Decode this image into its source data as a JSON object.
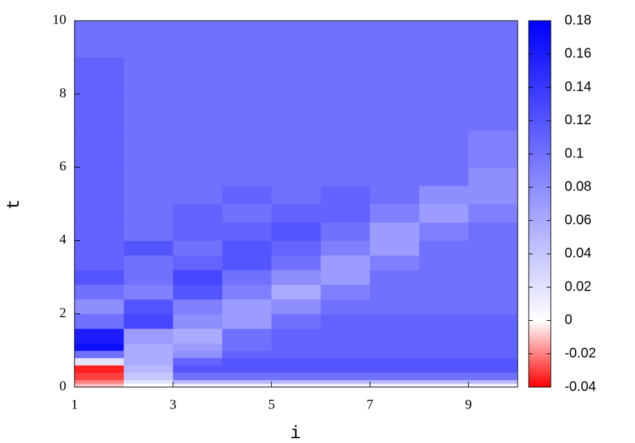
{
  "chart_data": {
    "type": "heatmap",
    "x_label": "i",
    "y_label": "t",
    "x": [
      1,
      2,
      3,
      4,
      5,
      6,
      7,
      8,
      9,
      10
    ],
    "y": [
      0,
      0.1,
      0.2,
      0.4,
      0.6,
      0.8,
      1.0,
      1.2,
      1.6,
      2.0,
      2.4,
      2.8,
      3.2,
      3.6,
      4.0,
      4.5,
      5,
      5.5,
      6,
      7,
      8,
      9,
      10
    ],
    "values": [
      [
        -0.01,
        0.0,
        0.01,
        0.01,
        0.01,
        0.01,
        0.01,
        0.01,
        0.01
      ],
      [
        -0.02,
        0.02,
        0.05,
        0.05,
        0.05,
        0.05,
        0.05,
        0.05,
        0.05
      ],
      [
        -0.03,
        0.04,
        0.1,
        0.1,
        0.1,
        0.1,
        0.1,
        0.1,
        0.1
      ],
      [
        -0.035,
        0.05,
        0.12,
        0.12,
        0.12,
        0.12,
        0.12,
        0.12,
        0.12
      ],
      [
        0.02,
        0.06,
        0.11,
        0.12,
        0.12,
        0.12,
        0.12,
        0.12,
        0.12
      ],
      [
        0.1,
        0.06,
        0.08,
        0.11,
        0.11,
        0.11,
        0.11,
        0.11,
        0.11
      ],
      [
        0.17,
        0.06,
        0.07,
        0.1,
        0.11,
        0.11,
        0.11,
        0.11,
        0.11
      ],
      [
        0.16,
        0.07,
        0.06,
        0.1,
        0.11,
        0.11,
        0.11,
        0.11,
        0.11
      ],
      [
        0.1,
        0.13,
        0.08,
        0.07,
        0.1,
        0.11,
        0.11,
        0.11,
        0.11
      ],
      [
        0.08,
        0.12,
        0.09,
        0.07,
        0.08,
        0.1,
        0.1,
        0.1,
        0.1
      ],
      [
        0.1,
        0.09,
        0.12,
        0.09,
        0.06,
        0.09,
        0.1,
        0.1,
        0.1
      ],
      [
        0.12,
        0.1,
        0.13,
        0.1,
        0.08,
        0.07,
        0.1,
        0.1,
        0.1
      ],
      [
        0.11,
        0.1,
        0.11,
        0.12,
        0.1,
        0.07,
        0.09,
        0.1,
        0.1
      ],
      [
        0.11,
        0.12,
        0.1,
        0.12,
        0.11,
        0.09,
        0.07,
        0.1,
        0.1
      ],
      [
        0.11,
        0.1,
        0.11,
        0.11,
        0.12,
        0.1,
        0.07,
        0.09,
        0.1
      ],
      [
        0.11,
        0.1,
        0.11,
        0.1,
        0.11,
        0.11,
        0.09,
        0.07,
        0.09
      ],
      [
        0.11,
        0.1,
        0.1,
        0.11,
        0.1,
        0.11,
        0.1,
        0.08,
        0.08
      ],
      [
        0.11,
        0.1,
        0.1,
        0.1,
        0.1,
        0.1,
        0.1,
        0.1,
        0.08
      ],
      [
        0.11,
        0.1,
        0.1,
        0.1,
        0.1,
        0.1,
        0.1,
        0.1,
        0.09
      ],
      [
        0.11,
        0.1,
        0.1,
        0.1,
        0.1,
        0.1,
        0.1,
        0.1,
        0.1
      ],
      [
        0.11,
        0.1,
        0.1,
        0.1,
        0.1,
        0.1,
        0.1,
        0.1,
        0.1
      ],
      [
        0.1,
        0.1,
        0.1,
        0.1,
        0.1,
        0.1,
        0.1,
        0.1,
        0.1
      ]
    ],
    "xlim": [
      1,
      10
    ],
    "xticks": [
      1,
      3,
      5,
      7,
      9
    ],
    "ylim": [
      0,
      10
    ],
    "yticks": [
      0,
      2,
      4,
      6,
      8,
      10
    ],
    "zlim": [
      -0.04,
      0.18
    ],
    "zticks": [
      -0.04,
      -0.02,
      0,
      0.02,
      0.04,
      0.06,
      0.08,
      0.1,
      0.12,
      0.14,
      0.16,
      0.18
    ],
    "palette": [
      [
        -0.04,
        "#ff0000"
      ],
      [
        0,
        "#ffffff"
      ],
      [
        0.18,
        "#0000ff"
      ]
    ]
  }
}
